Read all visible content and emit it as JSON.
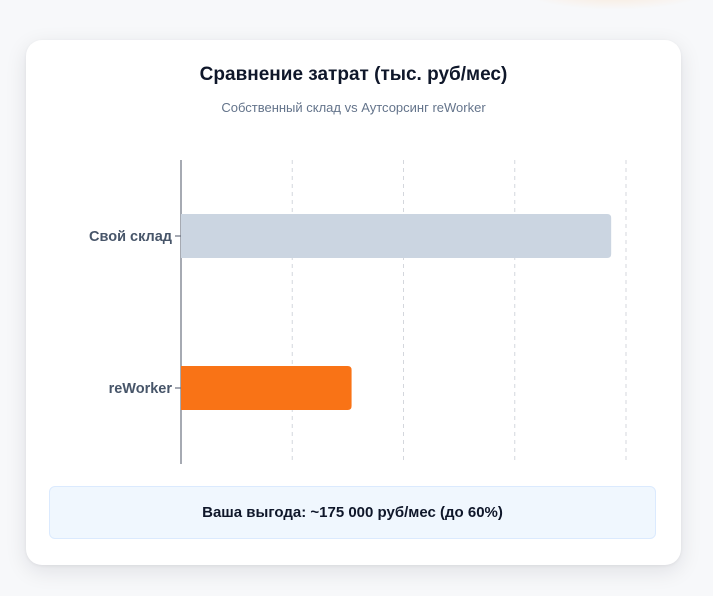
{
  "chart_data": {
    "type": "bar",
    "orientation": "horizontal",
    "title": "Сравнение затрат (тыс. руб/мес)",
    "subtitle": "Собственный склад vs Аутсорсинг reWorker",
    "categories": [
      "Свой склад",
      "reWorker"
    ],
    "values": [
      290,
      115
    ],
    "xlim": [
      0,
      300
    ],
    "grid": true,
    "x_tick_labels_visible": false,
    "colors": [
      "#cbd5e1",
      "#f97316"
    ]
  },
  "savings_banner": {
    "text": "Ваша выгода: ~175 000 руб/мес (до 60%)"
  },
  "colors": {
    "accent": "#f97316",
    "muted_bar": "#cbd5e1",
    "banner_bg": "#f0f7fe"
  }
}
